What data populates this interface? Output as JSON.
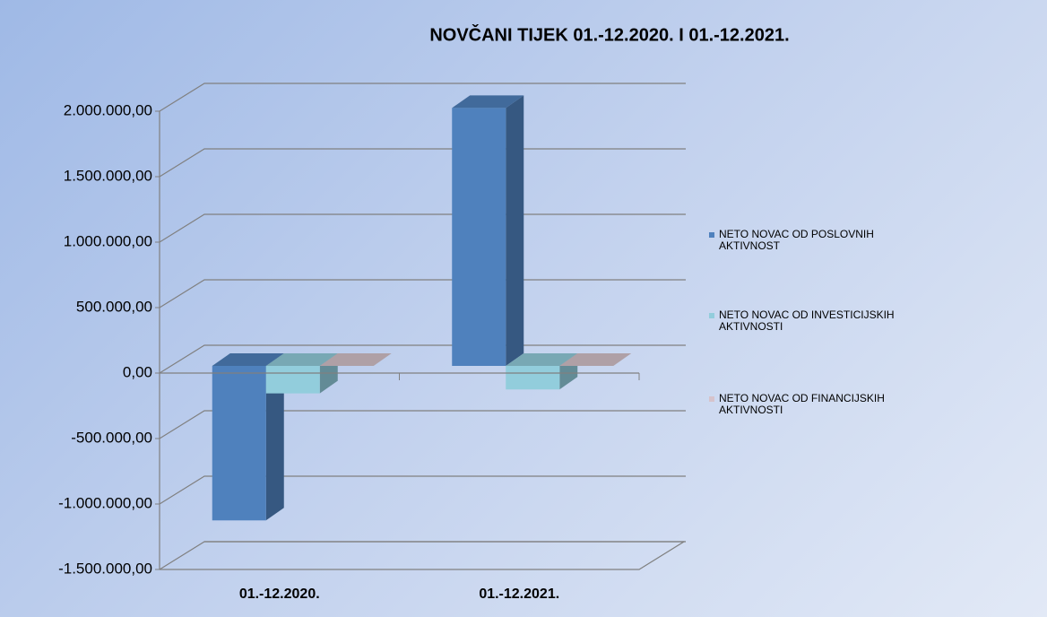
{
  "chart_data": {
    "type": "bar3d",
    "title": "NOVČANI TIJEK 01.-12.2020.  I  01.-12.2021.",
    "categories": [
      "01.-12.2020.",
      "01.-12.2021."
    ],
    "series": [
      {
        "name": "NETO NOVAC OD POSLOVNIH AKTIVNOST",
        "color": "#4f81bd",
        "values": [
          -1180000,
          1970000
        ]
      },
      {
        "name": "NETO NOVAC OD INVESTICIJSKIH AKTIVNOSTI",
        "color": "#92cddc",
        "values": [
          -210000,
          -180000
        ]
      },
      {
        "name": "NETO NOVAC OD FINANCIJSKIH AKTIVNOSTI",
        "color": "#d6c3cb",
        "values": [
          0,
          0
        ]
      }
    ],
    "ylim": [
      -1500000,
      2000000
    ],
    "yticks": [
      {
        "value": -1500000,
        "label": "-1.500.000,00"
      },
      {
        "value": -1000000,
        "label": "-1.000.000,00"
      },
      {
        "value": -500000,
        "label": "-500.000,00"
      },
      {
        "value": 0,
        "label": "0,00"
      },
      {
        "value": 500000,
        "label": "500.000,00"
      },
      {
        "value": 1000000,
        "label": "1.000.000,00"
      },
      {
        "value": 1500000,
        "label": "1.500.000,00"
      },
      {
        "value": 2000000,
        "label": "2.000.000,00"
      }
    ],
    "grid": true
  }
}
